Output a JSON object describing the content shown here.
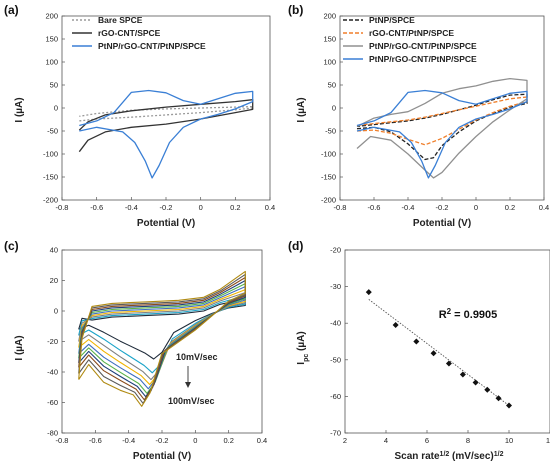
{
  "chart_data": [
    {
      "id": "a",
      "type": "line",
      "panel_label": "(a)",
      "xlabel": "Potential (V)",
      "ylabel": "I (µA)",
      "xlim": [
        -0.8,
        0.4
      ],
      "ylim": [
        -200,
        200
      ],
      "xticks": [
        -0.8,
        -0.6,
        -0.4,
        -0.2,
        0,
        0.2,
        0.4
      ],
      "yticks": [
        -200,
        -150,
        -100,
        -50,
        0,
        50,
        100,
        150,
        200
      ],
      "legend_position": "top-left",
      "series": [
        {
          "name": "Bare SPCE",
          "color": "#9a9a9a",
          "dash": "2,2",
          "points": [
            [
              -0.7,
              -28
            ],
            [
              -0.6,
              -24
            ],
            [
              -0.4,
              -20
            ],
            [
              -0.2,
              -15
            ],
            [
              0,
              -10
            ],
            [
              0.2,
              -4
            ],
            [
              0.3,
              0
            ],
            [
              0.3,
              3
            ],
            [
              0.2,
              2
            ],
            [
              0,
              0
            ],
            [
              -0.2,
              -2
            ],
            [
              -0.4,
              -5
            ],
            [
              -0.6,
              -12
            ],
            [
              -0.7,
              -18
            ]
          ]
        },
        {
          "name": "rGO-CNT/SPCE",
          "color": "#333333",
          "dash": "",
          "points": [
            [
              -0.7,
              -95
            ],
            [
              -0.65,
              -70
            ],
            [
              -0.55,
              -52
            ],
            [
              -0.4,
              -42
            ],
            [
              -0.2,
              -35
            ],
            [
              0,
              -24
            ],
            [
              0.2,
              -10
            ],
            [
              0.3,
              -3
            ],
            [
              0.3,
              18
            ],
            [
              0.2,
              14
            ],
            [
              0,
              8
            ],
            [
              -0.2,
              2
            ],
            [
              -0.4,
              -6
            ],
            [
              -0.55,
              -15
            ],
            [
              -0.65,
              -30
            ],
            [
              -0.7,
              -48
            ]
          ]
        },
        {
          "name": "PtNP/rGO-CNT/PtNP/SPCE",
          "color": "#3a7fd5",
          "dash": "",
          "points": [
            [
              -0.7,
              -50
            ],
            [
              -0.6,
              -42
            ],
            [
              -0.45,
              -52
            ],
            [
              -0.38,
              -75
            ],
            [
              -0.32,
              -115
            ],
            [
              -0.28,
              -152
            ],
            [
              -0.24,
              -125
            ],
            [
              -0.18,
              -75
            ],
            [
              -0.1,
              -42
            ],
            [
              0,
              -24
            ],
            [
              0.1,
              -14
            ],
            [
              0.2,
              -2
            ],
            [
              0.3,
              14
            ],
            [
              0.3,
              36
            ],
            [
              0.2,
              32
            ],
            [
              0.1,
              20
            ],
            [
              0,
              8
            ],
            [
              -0.1,
              16
            ],
            [
              -0.2,
              33
            ],
            [
              -0.3,
              38
            ],
            [
              -0.4,
              34
            ],
            [
              -0.5,
              -10
            ],
            [
              -0.6,
              -28
            ],
            [
              -0.7,
              -38
            ]
          ]
        }
      ]
    },
    {
      "id": "b",
      "type": "line",
      "panel_label": "(b)",
      "xlabel": "Potential (V)",
      "ylabel": "I (µA)",
      "xlim": [
        -0.8,
        0.4
      ],
      "ylim": [
        -200,
        200
      ],
      "xticks": [
        -0.8,
        -0.6,
        -0.4,
        -0.2,
        0,
        0.2,
        0.4
      ],
      "yticks": [
        -200,
        -150,
        -100,
        -50,
        0,
        50,
        100,
        150,
        200
      ],
      "legend_position": "top-left",
      "series": [
        {
          "name": "PtNP/SPCE",
          "color": "#222222",
          "dash": "4,2",
          "points": [
            [
              -0.7,
              -45
            ],
            [
              -0.6,
              -42
            ],
            [
              -0.5,
              -52
            ],
            [
              -0.4,
              -78
            ],
            [
              -0.3,
              -112
            ],
            [
              -0.25,
              -108
            ],
            [
              -0.2,
              -82
            ],
            [
              -0.1,
              -52
            ],
            [
              0,
              -28
            ],
            [
              0.1,
              -12
            ],
            [
              0.2,
              2
            ],
            [
              0.3,
              10
            ],
            [
              0.3,
              30
            ],
            [
              0.2,
              28
            ],
            [
              0.1,
              18
            ],
            [
              0,
              6
            ],
            [
              -0.1,
              -4
            ],
            [
              -0.2,
              -14
            ],
            [
              -0.3,
              -22
            ],
            [
              -0.4,
              -28
            ],
            [
              -0.5,
              -32
            ],
            [
              -0.6,
              -36
            ],
            [
              -0.7,
              -40
            ]
          ]
        },
        {
          "name": "rGO-CNT/PtNP/SPCE",
          "color": "#f07f2b",
          "dash": "4,2",
          "points": [
            [
              -0.7,
              -50
            ],
            [
              -0.6,
              -48
            ],
            [
              -0.5,
              -55
            ],
            [
              -0.4,
              -68
            ],
            [
              -0.3,
              -80
            ],
            [
              -0.2,
              -66
            ],
            [
              -0.1,
              -46
            ],
            [
              0,
              -26
            ],
            [
              0.1,
              -10
            ],
            [
              0.2,
              4
            ],
            [
              0.3,
              14
            ],
            [
              0.3,
              24
            ],
            [
              0.2,
              20
            ],
            [
              0.1,
              12
            ],
            [
              0,
              4
            ],
            [
              -0.1,
              -4
            ],
            [
              -0.2,
              -12
            ],
            [
              -0.3,
              -20
            ],
            [
              -0.4,
              -26
            ],
            [
              -0.5,
              -30
            ],
            [
              -0.6,
              -34
            ],
            [
              -0.7,
              -38
            ]
          ]
        },
        {
          "name": "PtNP/rGO-CNT/PtNP/SPCE",
          "color": "#909090",
          "dash": "",
          "points": [
            [
              -0.7,
              -88
            ],
            [
              -0.62,
              -62
            ],
            [
              -0.5,
              -70
            ],
            [
              -0.4,
              -100
            ],
            [
              -0.3,
              -135
            ],
            [
              -0.25,
              -152
            ],
            [
              -0.2,
              -140
            ],
            [
              -0.1,
              -98
            ],
            [
              0,
              -62
            ],
            [
              0.1,
              -30
            ],
            [
              0.2,
              -4
            ],
            [
              0.3,
              20
            ],
            [
              0.3,
              60
            ],
            [
              0.2,
              64
            ],
            [
              0.1,
              58
            ],
            [
              0,
              48
            ],
            [
              -0.1,
              42
            ],
            [
              -0.2,
              32
            ],
            [
              -0.3,
              10
            ],
            [
              -0.4,
              -8
            ],
            [
              -0.5,
              -14
            ],
            [
              -0.6,
              -22
            ],
            [
              -0.7,
              -40
            ]
          ]
        },
        {
          "name": "PtNP/rGO-CNT/PtNP/SPCE",
          "color": "#3a7fd5",
          "dash": "",
          "points": [
            [
              -0.7,
              -50
            ],
            [
              -0.6,
              -42
            ],
            [
              -0.45,
              -52
            ],
            [
              -0.38,
              -75
            ],
            [
              -0.32,
              -115
            ],
            [
              -0.28,
              -152
            ],
            [
              -0.24,
              -125
            ],
            [
              -0.18,
              -75
            ],
            [
              -0.1,
              -42
            ],
            [
              0,
              -24
            ],
            [
              0.1,
              -14
            ],
            [
              0.2,
              -2
            ],
            [
              0.3,
              14
            ],
            [
              0.3,
              36
            ],
            [
              0.2,
              32
            ],
            [
              0.1,
              20
            ],
            [
              0,
              8
            ],
            [
              -0.1,
              16
            ],
            [
              -0.2,
              33
            ],
            [
              -0.3,
              38
            ],
            [
              -0.4,
              34
            ],
            [
              -0.5,
              -10
            ],
            [
              -0.6,
              -28
            ],
            [
              -0.7,
              -38
            ]
          ]
        }
      ]
    },
    {
      "id": "c",
      "type": "line",
      "panel_label": "(c)",
      "xlabel": "Potential (V)",
      "ylabel": "I (µA)",
      "xlim": [
        -0.8,
        0.4
      ],
      "ylim": [
        -80,
        40
      ],
      "xticks": [
        -0.8,
        -0.6,
        -0.4,
        -0.2,
        0,
        0.2,
        0.4
      ],
      "yticks": [
        -80,
        -60,
        -40,
        -20,
        0,
        20,
        40
      ],
      "scan_rates": [
        10,
        20,
        30,
        40,
        50,
        60,
        70,
        80,
        90,
        100
      ],
      "peak_currents": [
        -31.5,
        -40.5,
        -45,
        -48.2,
        -51,
        -54,
        -56.2,
        -58.2,
        -60.5,
        -62.5
      ],
      "anodic_max": [
        8,
        10,
        12,
        14,
        16,
        18,
        20,
        22,
        24,
        26
      ],
      "plateau_top": [
        -3,
        -2,
        -1,
        0,
        1,
        2,
        3,
        4,
        5,
        6
      ],
      "cathodic_start": [
        -12,
        -16,
        -20,
        -24,
        -28,
        -31,
        -34,
        -37,
        -41,
        -45
      ],
      "colors": [
        "#1f2b3a",
        "#1aa3c8",
        "#7f7f7f",
        "#f0b400",
        "#3f6fbf",
        "#59b24a",
        "#1f3f7a",
        "#8a4a1a",
        "#5a5a5a",
        "#b08a12"
      ],
      "annotations": {
        "top": "10mV/sec",
        "bottom": "100mV/sec"
      }
    },
    {
      "id": "d",
      "type": "scatter",
      "panel_label": "(d)",
      "xlabel": "Scan rate1/2 (mV/sec)1/2",
      "ylabel": "Ipc (µA)",
      "xlim": [
        2,
        12
      ],
      "ylim": [
        -70,
        -20
      ],
      "xticks": [
        2,
        4,
        6,
        8,
        10,
        12
      ],
      "yticks": [
        -70,
        -60,
        -50,
        -40,
        -30,
        -20
      ],
      "x": [
        3.16,
        4.47,
        5.48,
        6.32,
        7.07,
        7.75,
        8.37,
        8.94,
        9.49,
        10.0
      ],
      "y": [
        -31.5,
        -40.5,
        -45,
        -48.2,
        -51,
        -54,
        -56.2,
        -58.2,
        -60.5,
        -62.5
      ],
      "trendline": {
        "x": [
          3.16,
          10.0
        ],
        "y": [
          -33.5,
          -62.5
        ]
      },
      "annotation": "R2 = 0.9905"
    }
  ]
}
